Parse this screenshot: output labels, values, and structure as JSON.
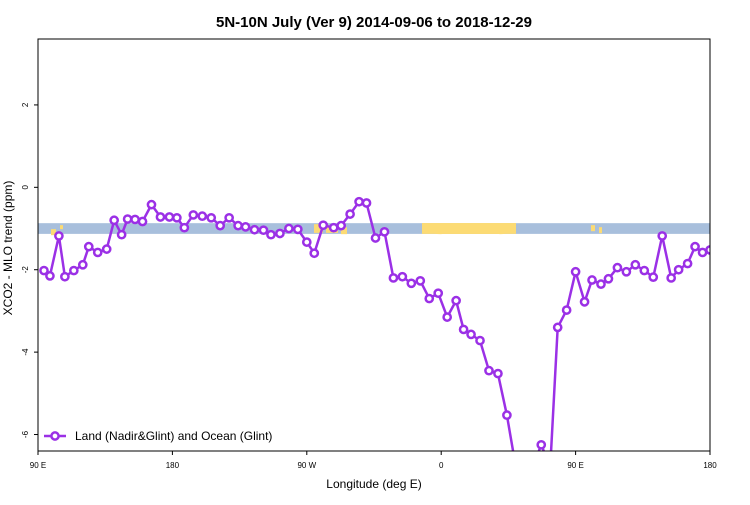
{
  "chart_data": {
    "type": "line",
    "title": "5N-10N July (Ver 9)   2014-09-06 to 2018-12-29",
    "xlabel": "Longitude (deg E)",
    "ylabel": "XCO2 - MLO trend (ppm)",
    "xlim": [
      90,
      540
    ],
    "ylim": [
      -6.4,
      3.6
    ],
    "x_ticks": [
      {
        "value": 90,
        "label": "90 E"
      },
      {
        "value": 180,
        "label": "180"
      },
      {
        "value": 270,
        "label": "90 W"
      },
      {
        "value": 360,
        "label": "0"
      },
      {
        "value": 450,
        "label": "90 E"
      },
      {
        "value": 540,
        "label": "180"
      }
    ],
    "y_ticks": [
      {
        "value": 2,
        "label": "2"
      },
      {
        "value": 0,
        "label": "0"
      },
      {
        "value": -2,
        "label": "-2"
      },
      {
        "value": -4,
        "label": "-4"
      },
      {
        "value": -6,
        "label": "-6"
      }
    ],
    "map_band": {
      "y_top": -0.87,
      "y_bottom": -1.13,
      "ocean_color": "#a8bfdc",
      "land_color": "#fcdb74"
    },
    "grid": false,
    "legend_position": "bottom-left",
    "series": [
      {
        "name": "Land (Nadir&Glint) and Ocean (Glint)",
        "color": "#9b30e6",
        "x": [
          94,
          98,
          104,
          108,
          114,
          120,
          124,
          130,
          136,
          141,
          146,
          150,
          155,
          160,
          166,
          172,
          178,
          183,
          188,
          194,
          200,
          206,
          212,
          218,
          224,
          229,
          235,
          241,
          246,
          252,
          258,
          264,
          270,
          275,
          281,
          288,
          293,
          299,
          305,
          310,
          316,
          322,
          328,
          334,
          340,
          346,
          352,
          358,
          364,
          370,
          375,
          380,
          386,
          392,
          398,
          404,
          410,
          416,
          421,
          427,
          433,
          438,
          444,
          450,
          456,
          461,
          467,
          472,
          478,
          484,
          490,
          496,
          502,
          508,
          514,
          519,
          525,
          530,
          535,
          540
        ],
        "y": [
          -2.02,
          -2.15,
          -1.18,
          -2.17,
          -2.02,
          -1.88,
          -1.44,
          -1.58,
          -1.5,
          -0.8,
          -1.15,
          -0.77,
          -0.78,
          -0.83,
          -0.42,
          -0.72,
          -0.72,
          -0.74,
          -0.98,
          -0.67,
          -0.7,
          -0.74,
          -0.93,
          -0.74,
          -0.93,
          -0.96,
          -1.03,
          -1.04,
          -1.15,
          -1.12,
          -1.0,
          -1.02,
          -1.33,
          -1.6,
          -0.92,
          -0.98,
          -0.93,
          -0.65,
          -0.35,
          -0.38,
          -1.23,
          -1.08,
          -2.2,
          -2.17,
          -2.33,
          -2.27,
          -2.7,
          -2.57,
          -3.15,
          -2.75,
          -3.45,
          -3.57,
          -3.72,
          -4.45,
          -4.52,
          -5.53,
          -6.8,
          -6.8,
          -6.8,
          -6.25,
          -6.8,
          -3.4,
          -2.98,
          -2.05,
          -2.78,
          -2.25,
          -2.35,
          -2.22,
          -1.95,
          -2.05,
          -1.88,
          -2.02,
          -2.18,
          -1.18,
          -2.2,
          -2.0,
          -1.85,
          -1.44,
          -1.58,
          -1.52
        ]
      }
    ]
  }
}
